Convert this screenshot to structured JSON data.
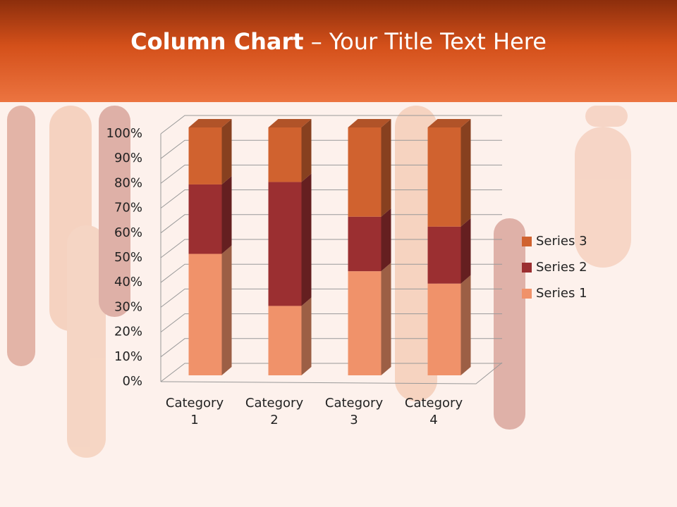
{
  "slide": {
    "title_bold": "Column Chart",
    "title_rest": "– Your Title Text Here"
  },
  "chart_data": {
    "type": "bar",
    "stacked": true,
    "categories": [
      "Category 1",
      "Category 2",
      "Category 3",
      "Category 4"
    ],
    "series": [
      {
        "name": "Series 1",
        "color": "#f0926a",
        "values": [
          49,
          28,
          42,
          37
        ]
      },
      {
        "name": "Series 2",
        "color": "#9b2f31",
        "values": [
          28,
          50,
          22,
          23
        ]
      },
      {
        "name": "Series 3",
        "color": "#d0622f",
        "values": [
          23,
          22,
          36,
          40
        ]
      }
    ],
    "ylim": [
      0,
      100
    ],
    "yticks": [
      {
        "value": 0,
        "label": "0%"
      },
      {
        "value": 10,
        "label": "10%"
      },
      {
        "value": 20,
        "label": "20%"
      },
      {
        "value": 30,
        "label": "30%"
      },
      {
        "value": 40,
        "label": "40%"
      },
      {
        "value": 50,
        "label": "50%"
      },
      {
        "value": 60,
        "label": "60%"
      },
      {
        "value": 70,
        "label": "70%"
      },
      {
        "value": 80,
        "label": "80%"
      },
      {
        "value": 90,
        "label": "90%"
      },
      {
        "value": 100,
        "label": "100%"
      }
    ],
    "grid": true
  }
}
